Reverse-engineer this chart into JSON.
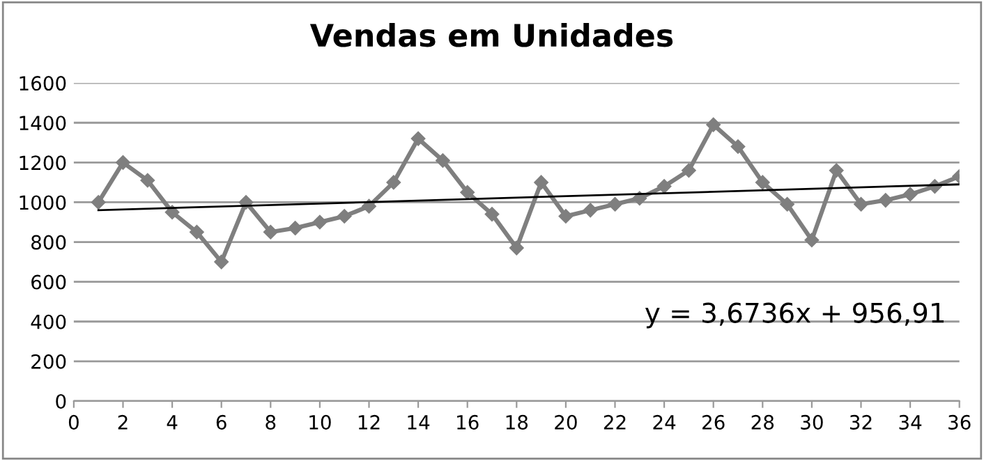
{
  "chart_data": {
    "type": "line",
    "title": "Vendas em Unidades",
    "x": [
      1,
      2,
      3,
      4,
      5,
      6,
      7,
      8,
      9,
      10,
      11,
      12,
      13,
      14,
      15,
      16,
      17,
      18,
      19,
      20,
      21,
      22,
      23,
      24,
      25,
      26,
      27,
      28,
      29,
      30,
      31,
      32,
      33,
      34,
      35,
      36
    ],
    "series": [
      {
        "color": "#7f7f7f",
        "marker": "diamond",
        "values": [
          1000,
          1200,
          1110,
          950,
          850,
          700,
          1000,
          850,
          870,
          900,
          930,
          980,
          1100,
          1320,
          1210,
          1050,
          940,
          770,
          1100,
          930,
          960,
          990,
          1020,
          1080,
          1160,
          1390,
          1280,
          1100,
          990,
          810,
          1160,
          990,
          1010,
          1040,
          1080,
          1130
        ]
      },
      {
        "type": "line",
        "color": "#000000",
        "marker": "none",
        "x": [
          1,
          36
        ],
        "values": [
          960,
          1090
        ]
      }
    ],
    "annotations": [
      "y = 3,6736x + 956,91"
    ],
    "xlim": [
      0,
      36
    ],
    "xticks": [
      0,
      2,
      4,
      6,
      8,
      10,
      12,
      14,
      16,
      18,
      20,
      22,
      24,
      26,
      28,
      30,
      32,
      34,
      36
    ],
    "ylim": [
      0,
      1600
    ],
    "yticks": [
      0,
      200,
      400,
      600,
      800,
      1000,
      1200,
      1400,
      1600
    ],
    "grid": "y",
    "legend": false
  }
}
